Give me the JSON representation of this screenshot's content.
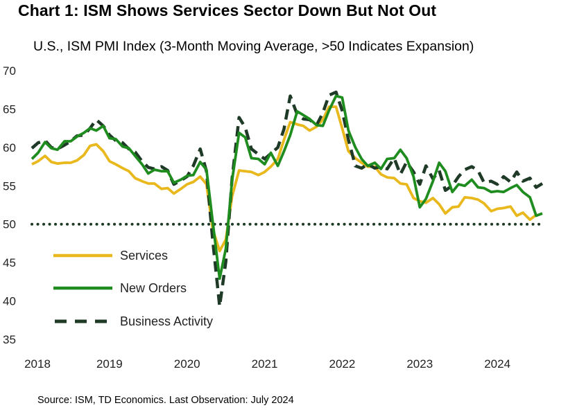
{
  "chart_data": {
    "type": "line",
    "title": "Chart 1: ISM Shows Services Sector Down But Not Out",
    "subtitle": "U.S., ISM PMI Index (3-Month Moving Average, >50 Indicates Expansion)",
    "source": "Source: ISM, TD Economics. Last Observation: July 2024",
    "xlabel": "",
    "ylabel": "",
    "xlim": [
      2018.0,
      2024.58
    ],
    "ylim": [
      35,
      70
    ],
    "yticks": [
      "70",
      "65",
      "60",
      "55",
      "50",
      "45",
      "40",
      "35"
    ],
    "xticks": [
      "2018",
      "2019",
      "2020",
      "2021",
      "2022",
      "2023",
      "2024"
    ],
    "reference_line": 50,
    "colors": {
      "services": "#E8B81C",
      "new_orders": "#1E8C1E",
      "business_activity": "#1F3A27",
      "reference": "#1F3A27"
    },
    "series": [
      {
        "name": "Services",
        "style": "solid",
        "points": [
          [
            2018.0,
            57.8
          ],
          [
            2018.08,
            58.2
          ],
          [
            2018.17,
            58.9
          ],
          [
            2018.25,
            58.1
          ],
          [
            2018.33,
            57.9
          ],
          [
            2018.42,
            58.0
          ],
          [
            2018.5,
            58.0
          ],
          [
            2018.58,
            58.3
          ],
          [
            2018.67,
            59.0
          ],
          [
            2018.75,
            60.2
          ],
          [
            2018.83,
            60.4
          ],
          [
            2018.92,
            59.5
          ],
          [
            2019.0,
            58.2
          ],
          [
            2019.08,
            57.8
          ],
          [
            2019.17,
            57.3
          ],
          [
            2019.25,
            56.9
          ],
          [
            2019.33,
            56.0
          ],
          [
            2019.42,
            55.6
          ],
          [
            2019.5,
            55.3
          ],
          [
            2019.58,
            55.3
          ],
          [
            2019.67,
            54.6
          ],
          [
            2019.75,
            54.7
          ],
          [
            2019.83,
            54.0
          ],
          [
            2019.92,
            54.6
          ],
          [
            2020.0,
            55.2
          ],
          [
            2020.08,
            55.5
          ],
          [
            2020.17,
            56.2
          ],
          [
            2020.25,
            55.2
          ],
          [
            2020.33,
            49.4
          ],
          [
            2020.42,
            46.5
          ],
          [
            2020.5,
            48.0
          ],
          [
            2020.58,
            53.6
          ],
          [
            2020.67,
            57.0
          ],
          [
            2020.75,
            56.9
          ],
          [
            2020.83,
            56.8
          ],
          [
            2020.92,
            56.4
          ],
          [
            2021.0,
            56.8
          ],
          [
            2021.08,
            57.5
          ],
          [
            2021.17,
            58.5
          ],
          [
            2021.25,
            61.0
          ],
          [
            2021.33,
            63.3
          ],
          [
            2021.42,
            63.0
          ],
          [
            2021.5,
            62.8
          ],
          [
            2021.58,
            62.2
          ],
          [
            2021.67,
            62.7
          ],
          [
            2021.75,
            63.6
          ],
          [
            2021.83,
            65.3
          ],
          [
            2021.92,
            65.3
          ],
          [
            2022.0,
            62.5
          ],
          [
            2022.08,
            59.5
          ],
          [
            2022.17,
            58.6
          ],
          [
            2022.25,
            58.0
          ],
          [
            2022.33,
            57.5
          ],
          [
            2022.42,
            57.5
          ],
          [
            2022.5,
            56.5
          ],
          [
            2022.58,
            56.1
          ],
          [
            2022.67,
            56.0
          ],
          [
            2022.75,
            55.3
          ],
          [
            2022.83,
            55.2
          ],
          [
            2022.92,
            53.4
          ],
          [
            2023.0,
            53.0
          ],
          [
            2023.08,
            52.8
          ],
          [
            2023.17,
            53.4
          ],
          [
            2023.25,
            52.6
          ],
          [
            2023.33,
            51.4
          ],
          [
            2023.42,
            52.2
          ],
          [
            2023.5,
            52.3
          ],
          [
            2023.58,
            53.5
          ],
          [
            2023.67,
            53.4
          ],
          [
            2023.75,
            53.2
          ],
          [
            2023.83,
            52.7
          ],
          [
            2023.92,
            51.7
          ],
          [
            2024.0,
            52.0
          ],
          [
            2024.08,
            52.1
          ],
          [
            2024.17,
            52.3
          ],
          [
            2024.25,
            51.1
          ],
          [
            2024.33,
            51.5
          ],
          [
            2024.42,
            50.6
          ],
          [
            2024.5,
            51.2
          ]
        ]
      },
      {
        "name": "New Orders",
        "style": "solid",
        "points": [
          [
            2018.0,
            58.5
          ],
          [
            2018.08,
            59.3
          ],
          [
            2018.17,
            60.7
          ],
          [
            2018.25,
            59.9
          ],
          [
            2018.33,
            59.7
          ],
          [
            2018.42,
            60.8
          ],
          [
            2018.5,
            60.8
          ],
          [
            2018.58,
            61.4
          ],
          [
            2018.67,
            61.9
          ],
          [
            2018.75,
            62.5
          ],
          [
            2018.83,
            62.2
          ],
          [
            2018.92,
            62.8
          ],
          [
            2019.0,
            61.2
          ],
          [
            2019.08,
            61.1
          ],
          [
            2019.17,
            60.1
          ],
          [
            2019.25,
            59.9
          ],
          [
            2019.33,
            58.9
          ],
          [
            2019.42,
            57.8
          ],
          [
            2019.5,
            56.6
          ],
          [
            2019.58,
            57.1
          ],
          [
            2019.67,
            56.9
          ],
          [
            2019.75,
            56.9
          ],
          [
            2019.83,
            55.4
          ],
          [
            2019.92,
            55.8
          ],
          [
            2020.0,
            56.3
          ],
          [
            2020.08,
            56.4
          ],
          [
            2020.17,
            58.1
          ],
          [
            2020.25,
            57.1
          ],
          [
            2020.33,
            50.4
          ],
          [
            2020.42,
            42.9
          ],
          [
            2020.5,
            46.8
          ],
          [
            2020.58,
            55.7
          ],
          [
            2020.67,
            61.9
          ],
          [
            2020.75,
            61.3
          ],
          [
            2020.83,
            58.6
          ],
          [
            2020.92,
            58.5
          ],
          [
            2021.0,
            57.8
          ],
          [
            2021.08,
            59.3
          ],
          [
            2021.17,
            57.6
          ],
          [
            2021.25,
            59.5
          ],
          [
            2021.33,
            61.6
          ],
          [
            2021.42,
            64.7
          ],
          [
            2021.5,
            64.2
          ],
          [
            2021.58,
            63.7
          ],
          [
            2021.67,
            62.9
          ],
          [
            2021.75,
            62.8
          ],
          [
            2021.83,
            64.8
          ],
          [
            2021.92,
            66.7
          ],
          [
            2022.0,
            66.5
          ],
          [
            2022.08,
            62.2
          ],
          [
            2022.17,
            60.0
          ],
          [
            2022.25,
            58.5
          ],
          [
            2022.33,
            57.6
          ],
          [
            2022.42,
            58.0
          ],
          [
            2022.5,
            57.2
          ],
          [
            2022.58,
            58.5
          ],
          [
            2022.67,
            58.6
          ],
          [
            2022.75,
            59.7
          ],
          [
            2022.83,
            58.6
          ],
          [
            2022.92,
            56.2
          ],
          [
            2023.0,
            52.2
          ],
          [
            2023.08,
            53.3
          ],
          [
            2023.17,
            55.6
          ],
          [
            2023.25,
            58.0
          ],
          [
            2023.33,
            56.9
          ],
          [
            2023.42,
            54.2
          ],
          [
            2023.5,
            55.2
          ],
          [
            2023.58,
            55.0
          ],
          [
            2023.67,
            55.8
          ],
          [
            2023.75,
            54.8
          ],
          [
            2023.83,
            54.7
          ],
          [
            2023.92,
            54.2
          ],
          [
            2024.0,
            54.3
          ],
          [
            2024.08,
            54.2
          ],
          [
            2024.17,
            54.7
          ],
          [
            2024.25,
            55.1
          ],
          [
            2024.33,
            54.2
          ],
          [
            2024.42,
            53.5
          ],
          [
            2024.5,
            51.1
          ],
          [
            2024.58,
            51.4
          ]
        ]
      },
      {
        "name": "Business Activity",
        "style": "dashed",
        "points": [
          [
            2018.0,
            59.9
          ],
          [
            2018.08,
            60.6
          ],
          [
            2018.17,
            60.9
          ],
          [
            2018.25,
            60.0
          ],
          [
            2018.33,
            59.8
          ],
          [
            2018.42,
            60.3
          ],
          [
            2018.5,
            60.8
          ],
          [
            2018.58,
            61.5
          ],
          [
            2018.67,
            61.6
          ],
          [
            2018.75,
            62.5
          ],
          [
            2018.83,
            63.6
          ],
          [
            2018.92,
            62.8
          ],
          [
            2019.0,
            61.6
          ],
          [
            2019.08,
            60.9
          ],
          [
            2019.17,
            60.6
          ],
          [
            2019.25,
            59.8
          ],
          [
            2019.33,
            59.4
          ],
          [
            2019.42,
            58.2
          ],
          [
            2019.5,
            57.4
          ],
          [
            2019.58,
            57.2
          ],
          [
            2019.67,
            57.5
          ],
          [
            2019.75,
            57.0
          ],
          [
            2019.83,
            55.2
          ],
          [
            2019.92,
            55.7
          ],
          [
            2020.0,
            56.2
          ],
          [
            2020.08,
            57.6
          ],
          [
            2020.17,
            59.8
          ],
          [
            2020.25,
            56.9
          ],
          [
            2020.33,
            48.0
          ],
          [
            2020.42,
            39.3
          ],
          [
            2020.5,
            45.1
          ],
          [
            2020.58,
            55.9
          ],
          [
            2020.67,
            63.9
          ],
          [
            2020.75,
            62.6
          ],
          [
            2020.83,
            59.8
          ],
          [
            2020.92,
            59.1
          ],
          [
            2021.0,
            58.5
          ],
          [
            2021.08,
            59.2
          ],
          [
            2021.17,
            60.0
          ],
          [
            2021.25,
            62.4
          ],
          [
            2021.33,
            66.7
          ],
          [
            2021.42,
            64.3
          ],
          [
            2021.5,
            63.7
          ],
          [
            2021.58,
            63.6
          ],
          [
            2021.67,
            62.9
          ],
          [
            2021.75,
            64.5
          ],
          [
            2021.83,
            66.8
          ],
          [
            2021.92,
            67.2
          ],
          [
            2022.0,
            64.8
          ],
          [
            2022.08,
            61.0
          ],
          [
            2022.17,
            57.6
          ],
          [
            2022.25,
            57.3
          ],
          [
            2022.33,
            57.8
          ],
          [
            2022.42,
            57.3
          ],
          [
            2022.5,
            57.5
          ],
          [
            2022.58,
            57.2
          ],
          [
            2022.67,
            58.6
          ],
          [
            2022.75,
            56.5
          ],
          [
            2022.83,
            58.1
          ],
          [
            2022.92,
            56.8
          ],
          [
            2023.0,
            55.2
          ],
          [
            2023.08,
            57.6
          ],
          [
            2023.17,
            55.9
          ],
          [
            2023.25,
            57.0
          ],
          [
            2023.33,
            54.4
          ],
          [
            2023.42,
            55.0
          ],
          [
            2023.5,
            56.2
          ],
          [
            2023.58,
            57.1
          ],
          [
            2023.67,
            57.5
          ],
          [
            2023.75,
            57.0
          ],
          [
            2023.83,
            55.4
          ],
          [
            2023.92,
            55.6
          ],
          [
            2024.0,
            55.2
          ],
          [
            2024.08,
            56.2
          ],
          [
            2024.17,
            55.5
          ],
          [
            2024.25,
            56.8
          ],
          [
            2024.33,
            55.6
          ],
          [
            2024.42,
            56.0
          ],
          [
            2024.5,
            54.8
          ],
          [
            2024.58,
            55.3
          ]
        ]
      }
    ],
    "legend": [
      {
        "label": "Services",
        "series": 0
      },
      {
        "label": "New Orders",
        "series": 1
      },
      {
        "label": "Business Activity",
        "series": 2
      }
    ],
    "legend_position": "bottom-left"
  }
}
